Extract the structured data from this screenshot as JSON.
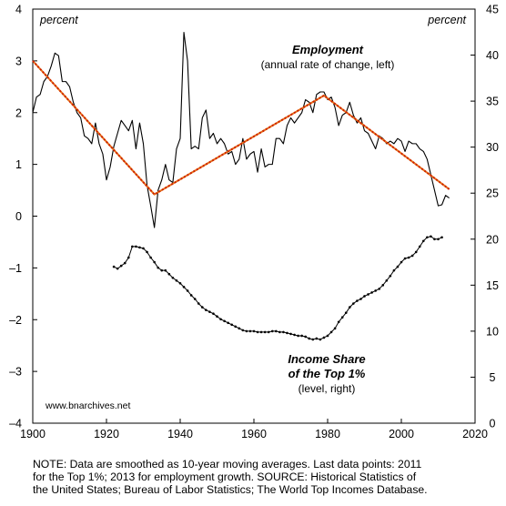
{
  "chart_data": {
    "type": "line",
    "x_ticks": [
      "1900",
      "1920",
      "1940",
      "1960",
      "1980",
      "2000",
      "2020"
    ],
    "xlim": [
      1900,
      2020
    ],
    "y_left": {
      "unit_label": "percent",
      "range": [
        -4,
        4
      ],
      "ticks": [
        "4",
        "3",
        "2",
        "1",
        "0",
        "–1",
        "–2",
        "–3",
        "–4"
      ]
    },
    "y_right": {
      "unit_label": "percent",
      "range": [
        0,
        45
      ],
      "ticks": [
        "45",
        "40",
        "35",
        "30",
        "25",
        "20",
        "15",
        "10",
        "5",
        "0"
      ]
    },
    "series": [
      {
        "name": "Employment",
        "axis": "left",
        "style": "solid",
        "color": "#000000",
        "points": [
          [
            1900,
            2.0
          ],
          [
            1901,
            2.3
          ],
          [
            1902,
            2.35
          ],
          [
            1903,
            2.6
          ],
          [
            1904,
            2.7
          ],
          [
            1905,
            2.9
          ],
          [
            1906,
            3.15
          ],
          [
            1907,
            3.1
          ],
          [
            1908,
            2.6
          ],
          [
            1909,
            2.6
          ],
          [
            1910,
            2.5
          ],
          [
            1911,
            2.2
          ],
          [
            1912,
            2.0
          ],
          [
            1913,
            1.9
          ],
          [
            1914,
            1.55
          ],
          [
            1915,
            1.5
          ],
          [
            1916,
            1.4
          ],
          [
            1917,
            1.8
          ],
          [
            1918,
            1.4
          ],
          [
            1919,
            1.2
          ],
          [
            1920,
            0.7
          ],
          [
            1921,
            0.95
          ],
          [
            1922,
            1.35
          ],
          [
            1923,
            1.6
          ],
          [
            1924,
            1.85
          ],
          [
            1925,
            1.75
          ],
          [
            1926,
            1.65
          ],
          [
            1927,
            1.85
          ],
          [
            1928,
            1.3
          ],
          [
            1929,
            1.8
          ],
          [
            1930,
            1.4
          ],
          [
            1931,
            0.6
          ],
          [
            1932,
            0.2
          ],
          [
            1933,
            -0.22
          ],
          [
            1934,
            0.5
          ],
          [
            1935,
            0.7
          ],
          [
            1936,
            1.0
          ],
          [
            1937,
            0.7
          ],
          [
            1938,
            0.65
          ],
          [
            1939,
            1.3
          ],
          [
            1940,
            1.5
          ],
          [
            1941,
            3.55
          ],
          [
            1942,
            3.0
          ],
          [
            1943,
            1.3
          ],
          [
            1944,
            1.35
          ],
          [
            1945,
            1.3
          ],
          [
            1946,
            1.9
          ],
          [
            1947,
            2.05
          ],
          [
            1948,
            1.5
          ],
          [
            1949,
            1.6
          ],
          [
            1950,
            1.4
          ],
          [
            1951,
            1.5
          ],
          [
            1952,
            1.4
          ],
          [
            1953,
            1.2
          ],
          [
            1954,
            1.25
          ],
          [
            1955,
            1.0
          ],
          [
            1956,
            1.1
          ],
          [
            1957,
            1.5
          ],
          [
            1958,
            1.1
          ],
          [
            1959,
            1.2
          ],
          [
            1960,
            1.25
          ],
          [
            1961,
            0.85
          ],
          [
            1962,
            1.3
          ],
          [
            1963,
            0.95
          ],
          [
            1964,
            1.0
          ],
          [
            1965,
            1.0
          ],
          [
            1966,
            1.5
          ],
          [
            1967,
            1.5
          ],
          [
            1968,
            1.4
          ],
          [
            1969,
            1.75
          ],
          [
            1970,
            1.9
          ],
          [
            1971,
            1.8
          ],
          [
            1972,
            1.9
          ],
          [
            1973,
            2.0
          ],
          [
            1974,
            2.25
          ],
          [
            1975,
            2.2
          ],
          [
            1976,
            2.0
          ],
          [
            1977,
            2.35
          ],
          [
            1978,
            2.4
          ],
          [
            1979,
            2.4
          ],
          [
            1980,
            2.25
          ],
          [
            1981,
            2.3
          ],
          [
            1982,
            2.1
          ],
          [
            1983,
            1.75
          ],
          [
            1984,
            1.95
          ],
          [
            1985,
            2.0
          ],
          [
            1986,
            2.2
          ],
          [
            1987,
            1.95
          ],
          [
            1988,
            1.8
          ],
          [
            1989,
            1.9
          ],
          [
            1990,
            1.65
          ],
          [
            1991,
            1.6
          ],
          [
            1992,
            1.45
          ],
          [
            1993,
            1.3
          ],
          [
            1994,
            1.55
          ],
          [
            1995,
            1.5
          ],
          [
            1996,
            1.4
          ],
          [
            1997,
            1.45
          ],
          [
            1998,
            1.4
          ],
          [
            1999,
            1.5
          ],
          [
            2000,
            1.45
          ],
          [
            2001,
            1.25
          ],
          [
            2002,
            1.45
          ],
          [
            2003,
            1.4
          ],
          [
            2004,
            1.4
          ],
          [
            2005,
            1.3
          ],
          [
            2006,
            1.25
          ],
          [
            2007,
            1.1
          ],
          [
            2008,
            0.8
          ],
          [
            2009,
            0.5
          ],
          [
            2010,
            0.2
          ],
          [
            2011,
            0.22
          ],
          [
            2012,
            0.4
          ],
          [
            2013,
            0.35
          ]
        ]
      },
      {
        "name": "Income Share of the Top 1%",
        "axis": "right",
        "style": "dotted",
        "color": "#000000",
        "points": [
          [
            1922,
            17.0
          ],
          [
            1923,
            16.8
          ],
          [
            1924,
            17.1
          ],
          [
            1925,
            17.4
          ],
          [
            1926,
            18.0
          ],
          [
            1927,
            19.2
          ],
          [
            1928,
            19.2
          ],
          [
            1929,
            19.1
          ],
          [
            1930,
            19.0
          ],
          [
            1931,
            18.6
          ],
          [
            1932,
            18.0
          ],
          [
            1933,
            17.5
          ],
          [
            1934,
            16.9
          ],
          [
            1935,
            16.6
          ],
          [
            1936,
            16.6
          ],
          [
            1937,
            16.2
          ],
          [
            1938,
            15.8
          ],
          [
            1939,
            15.5
          ],
          [
            1940,
            15.2
          ],
          [
            1941,
            14.8
          ],
          [
            1942,
            14.4
          ],
          [
            1943,
            13.9
          ],
          [
            1944,
            13.5
          ],
          [
            1945,
            13.0
          ],
          [
            1946,
            12.6
          ],
          [
            1947,
            12.3
          ],
          [
            1948,
            12.1
          ],
          [
            1949,
            11.9
          ],
          [
            1950,
            11.6
          ],
          [
            1951,
            11.3
          ],
          [
            1952,
            11.1
          ],
          [
            1953,
            10.9
          ],
          [
            1954,
            10.7
          ],
          [
            1955,
            10.5
          ],
          [
            1956,
            10.3
          ],
          [
            1957,
            10.1
          ],
          [
            1958,
            10.0
          ],
          [
            1959,
            10.0
          ],
          [
            1960,
            10.0
          ],
          [
            1961,
            9.9
          ],
          [
            1962,
            9.9
          ],
          [
            1963,
            9.9
          ],
          [
            1964,
            9.9
          ],
          [
            1965,
            10.0
          ],
          [
            1966,
            10.0
          ],
          [
            1967,
            9.9
          ],
          [
            1968,
            9.9
          ],
          [
            1969,
            9.8
          ],
          [
            1970,
            9.7
          ],
          [
            1971,
            9.6
          ],
          [
            1972,
            9.5
          ],
          [
            1973,
            9.5
          ],
          [
            1974,
            9.4
          ],
          [
            1975,
            9.2
          ],
          [
            1976,
            9.1
          ],
          [
            1977,
            9.2
          ],
          [
            1978,
            9.1
          ],
          [
            1979,
            9.3
          ],
          [
            1980,
            9.5
          ],
          [
            1981,
            9.9
          ],
          [
            1982,
            10.3
          ],
          [
            1983,
            11.0
          ],
          [
            1984,
            11.5
          ],
          [
            1985,
            12.0
          ],
          [
            1986,
            12.6
          ],
          [
            1987,
            13.0
          ],
          [
            1988,
            13.3
          ],
          [
            1989,
            13.5
          ],
          [
            1990,
            13.8
          ],
          [
            1991,
            14.0
          ],
          [
            1992,
            14.2
          ],
          [
            1993,
            14.4
          ],
          [
            1994,
            14.6
          ],
          [
            1995,
            15.0
          ],
          [
            1996,
            15.5
          ],
          [
            1997,
            16.0
          ],
          [
            1998,
            16.6
          ],
          [
            1999,
            17.0
          ],
          [
            2000,
            17.5
          ],
          [
            2001,
            17.9
          ],
          [
            2002,
            18.0
          ],
          [
            2003,
            18.2
          ],
          [
            2004,
            18.6
          ],
          [
            2005,
            19.2
          ],
          [
            2006,
            19.8
          ],
          [
            2007,
            20.2
          ],
          [
            2008,
            20.3
          ],
          [
            2009,
            20.0
          ],
          [
            2010,
            20.0
          ],
          [
            2011,
            20.2
          ]
        ]
      },
      {
        "name": "",
        "axis": "left",
        "style": "dashed-trend",
        "color": "#e8741a",
        "points": [
          [
            1900,
            3.0
          ],
          [
            1933,
            0.42
          ],
          [
            1979,
            2.33
          ],
          [
            2013,
            0.52
          ]
        ]
      }
    ],
    "annotations": {
      "left_unit": "percent",
      "right_unit": "percent",
      "employment_title": "Employment",
      "employment_subtitle": "(annual rate of change, left)",
      "income_title_line1": "Income Share",
      "income_title_line2": "of the Top 1%",
      "income_subtitle": "(level, right)",
      "source_site": "www.bnarchives.net"
    },
    "grid": false,
    "legend": "none"
  },
  "note": {
    "line1": "NOTE: Data are smoothed as 10-year moving averages. Last data points: 2011",
    "line2": "for the Top 1%; 2013 for employment growth. SOURCE: Historical Statistics of",
    "line3": "the United States; Bureau of Labor Statistics; The World Top Incomes Database."
  }
}
